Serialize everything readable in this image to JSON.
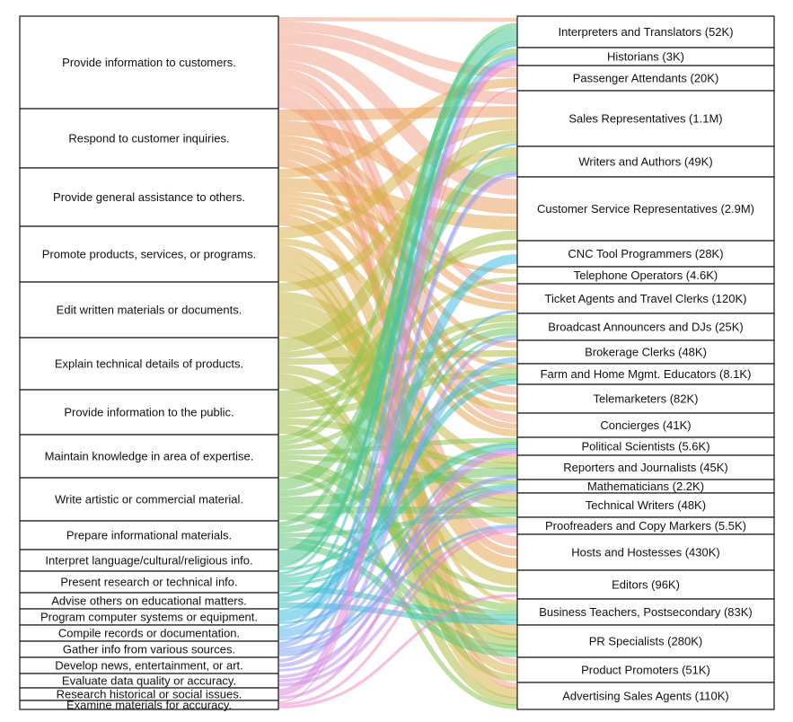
{
  "left_nodes": [
    {
      "id": "L0",
      "label": "Provide information to customers.",
      "color": "#f4a58f"
    },
    {
      "id": "L1",
      "label": "Respond to customer inquiries.",
      "color": "#eba262"
    },
    {
      "id": "L2",
      "label": "Provide general assistance to others.",
      "color": "#e6aa55"
    },
    {
      "id": "L3",
      "label": "Promote products, services, or programs.",
      "color": "#d9b450"
    },
    {
      "id": "L4",
      "label": "Edit written materials or documents.",
      "color": "#c8b94a"
    },
    {
      "id": "L5",
      "label": "Explain technical details of products.",
      "color": "#b5bd4a"
    },
    {
      "id": "L6",
      "label": "Provide information to the public.",
      "color": "#a3c14e"
    },
    {
      "id": "L7",
      "label": "Maintain knowledge in area of expertise.",
      "color": "#8cc458"
    },
    {
      "id": "L8",
      "label": "Write artistic or commercial material.",
      "color": "#73c566"
    },
    {
      "id": "L9",
      "label": "Prepare informational materials.",
      "color": "#62c67a"
    },
    {
      "id": "L10",
      "label": "Interpret language/cultural/religious info.",
      "color": "#4fc792"
    },
    {
      "id": "L11",
      "label": "Present research or technical info.",
      "color": "#44c7ac"
    },
    {
      "id": "L12",
      "label": "Advise others on educational matters.",
      "color": "#3ec3c4"
    },
    {
      "id": "L13",
      "label": "Program computer systems or equipment.",
      "color": "#45bde0"
    },
    {
      "id": "L14",
      "label": "Compile records or documentation.",
      "color": "#5cb2ef"
    },
    {
      "id": "L15",
      "label": "Gather info from various sources.",
      "color": "#7fa6f3"
    },
    {
      "id": "L16",
      "label": "Develop news, entertainment, or art.",
      "color": "#a59af2"
    },
    {
      "id": "L17",
      "label": "Evaluate data quality or accuracy.",
      "color": "#c68fec"
    },
    {
      "id": "L18",
      "label": "Research historical or social issues.",
      "color": "#e08ade"
    },
    {
      "id": "L19",
      "label": "Examine materials for accuracy.",
      "color": "#f08ac8"
    }
  ],
  "right_nodes": [
    {
      "id": "R0",
      "label": "Interpreters and Translators (52K)"
    },
    {
      "id": "R1",
      "label": "Historians (3K)"
    },
    {
      "id": "R2",
      "label": "Passenger Attendants (20K)"
    },
    {
      "id": "R3",
      "label": "Sales Representatives (1.1M)"
    },
    {
      "id": "R4",
      "label": "Writers and Authors (49K)"
    },
    {
      "id": "R5",
      "label": "Customer Service Representatives (2.9M)"
    },
    {
      "id": "R6",
      "label": "CNC Tool Programmers (28K)"
    },
    {
      "id": "R7",
      "label": "Telephone Operators (4.6K)"
    },
    {
      "id": "R8",
      "label": "Ticket Agents and Travel Clerks (120K)"
    },
    {
      "id": "R9",
      "label": "Broadcast Announcers and DJs (25K)"
    },
    {
      "id": "R10",
      "label": "Brokerage Clerks (48K)"
    },
    {
      "id": "R11",
      "label": "Farm and Home Mgmt. Educators (8.1K)"
    },
    {
      "id": "R12",
      "label": "Telemarketers (82K)"
    },
    {
      "id": "R13",
      "label": "Concierges (41K)"
    },
    {
      "id": "R14",
      "label": "Political Scientists (5.6K)"
    },
    {
      "id": "R15",
      "label": "Reporters and Journalists (45K)"
    },
    {
      "id": "R16",
      "label": "Mathematicians (2.2K)"
    },
    {
      "id": "R17",
      "label": "Technical Writers (48K)"
    },
    {
      "id": "R18",
      "label": "Proofreaders and Copy Markers (5.5K)"
    },
    {
      "id": "R19",
      "label": "Hosts and Hostesses (430K)"
    },
    {
      "id": "R20",
      "label": "Editors (96K)"
    },
    {
      "id": "R21",
      "label": "Business Teachers, Postsecondary (83K)"
    },
    {
      "id": "R22",
      "label": "PR Specialists (280K)"
    },
    {
      "id": "R23",
      "label": "Product Promoters (51K)"
    },
    {
      "id": "R24",
      "label": "Advertising Sales Agents (110K)"
    }
  ],
  "links": [
    [
      "L0",
      "R0",
      2
    ],
    [
      "L0",
      "R2",
      5
    ],
    [
      "L0",
      "R3",
      6
    ],
    [
      "L0",
      "R5",
      8
    ],
    [
      "L0",
      "R8",
      4
    ],
    [
      "L0",
      "R12",
      4
    ],
    [
      "L0",
      "R13",
      4
    ],
    [
      "L0",
      "R19",
      5
    ],
    [
      "L0",
      "R23",
      3
    ],
    [
      "L0",
      "R24",
      3
    ],
    [
      "L1",
      "R3",
      6
    ],
    [
      "L1",
      "R5",
      8
    ],
    [
      "L1",
      "R8",
      4
    ],
    [
      "L1",
      "R10",
      3
    ],
    [
      "L1",
      "R12",
      3
    ],
    [
      "L1",
      "R13",
      3
    ],
    [
      "L1",
      "R19",
      4
    ],
    [
      "L2",
      "R2",
      4
    ],
    [
      "L2",
      "R5",
      6
    ],
    [
      "L2",
      "R7",
      2
    ],
    [
      "L2",
      "R8",
      3
    ],
    [
      "L2",
      "R11",
      2
    ],
    [
      "L2",
      "R13",
      3
    ],
    [
      "L2",
      "R19",
      5
    ],
    [
      "L3",
      "R3",
      5
    ],
    [
      "L3",
      "R12",
      3
    ],
    [
      "L3",
      "R21",
      2
    ],
    [
      "L3",
      "R22",
      5
    ],
    [
      "L3",
      "R23",
      4
    ],
    [
      "L3",
      "R24",
      5
    ],
    [
      "L4",
      "R4",
      4
    ],
    [
      "L4",
      "R15",
      4
    ],
    [
      "L4",
      "R17",
      4
    ],
    [
      "L4",
      "R18",
      3
    ],
    [
      "L4",
      "R20",
      6
    ],
    [
      "L4",
      "R22",
      3
    ],
    [
      "L5",
      "R3",
      6
    ],
    [
      "L5",
      "R6",
      3
    ],
    [
      "L5",
      "R10",
      3
    ],
    [
      "L5",
      "R17",
      4
    ],
    [
      "L5",
      "R23",
      3
    ],
    [
      "L5",
      "R24",
      4
    ],
    [
      "L6",
      "R5",
      4
    ],
    [
      "L6",
      "R7",
      2
    ],
    [
      "L6",
      "R9",
      3
    ],
    [
      "L6",
      "R11",
      3
    ],
    [
      "L6",
      "R15",
      3
    ],
    [
      "L6",
      "R22",
      4
    ],
    [
      "L7",
      "R1",
      2
    ],
    [
      "L7",
      "R4",
      2
    ],
    [
      "L7",
      "R9",
      2
    ],
    [
      "L7",
      "R14",
      2
    ],
    [
      "L7",
      "R16",
      2
    ],
    [
      "L7",
      "R21",
      3
    ],
    [
      "L7",
      "R20",
      2
    ],
    [
      "L7",
      "R24",
      2
    ],
    [
      "L8",
      "R4",
      5
    ],
    [
      "L8",
      "R9",
      3
    ],
    [
      "L8",
      "R15",
      4
    ],
    [
      "L8",
      "R17",
      3
    ],
    [
      "L8",
      "R22",
      3
    ],
    [
      "L9",
      "R0",
      2
    ],
    [
      "L9",
      "R11",
      3
    ],
    [
      "L9",
      "R17",
      2
    ],
    [
      "L9",
      "R22",
      3
    ],
    [
      "L9",
      "R21",
      2
    ],
    [
      "L10",
      "R0",
      5
    ],
    [
      "L10",
      "R14",
      1
    ],
    [
      "L10",
      "R1",
      1
    ],
    [
      "L11",
      "R0",
      1
    ],
    [
      "L11",
      "R14",
      2
    ],
    [
      "L11",
      "R16",
      1
    ],
    [
      "L11",
      "R21",
      2
    ],
    [
      "L11",
      "R9",
      1
    ],
    [
      "L12",
      "R11",
      2
    ],
    [
      "L12",
      "R21",
      2
    ],
    [
      "L12",
      "R0",
      1
    ],
    [
      "L13",
      "R6",
      4
    ],
    [
      "L13",
      "R16",
      1
    ],
    [
      "L13",
      "R3",
      1
    ],
    [
      "L14",
      "R1",
      1
    ],
    [
      "L14",
      "R10",
      2
    ],
    [
      "L14",
      "R8",
      1
    ],
    [
      "L14",
      "R18",
      1
    ],
    [
      "L15",
      "R1",
      1
    ],
    [
      "L15",
      "R4",
      1
    ],
    [
      "L15",
      "R14",
      1
    ],
    [
      "L15",
      "R15",
      1
    ],
    [
      "L15",
      "R16",
      1
    ],
    [
      "L16",
      "R4",
      1
    ],
    [
      "L16",
      "R9",
      1
    ],
    [
      "L16",
      "R15",
      1
    ],
    [
      "L17",
      "R16",
      1
    ],
    [
      "L17",
      "R18",
      1
    ],
    [
      "L17",
      "R14",
      1
    ],
    [
      "L18",
      "R1",
      2
    ],
    [
      "L18",
      "R14",
      1
    ],
    [
      "L19",
      "R18",
      2
    ],
    [
      "L19",
      "R20",
      2
    ],
    [
      "L19",
      "R2",
      1
    ]
  ]
}
